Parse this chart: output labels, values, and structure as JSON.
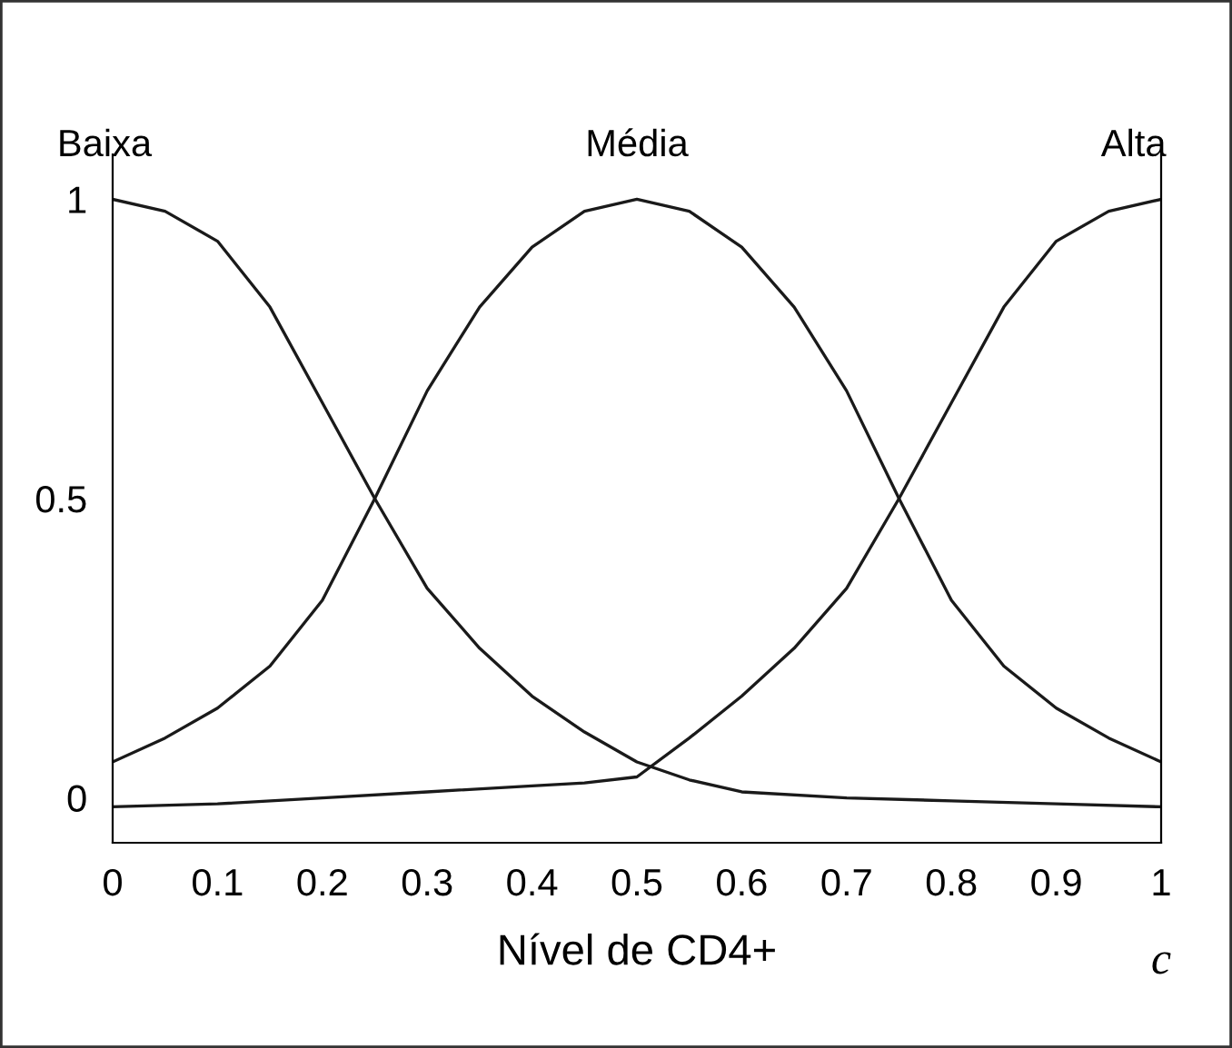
{
  "chart_data": {
    "type": "line",
    "xlabel": "Nível de CD4+",
    "series": [
      {
        "name": "Baixa",
        "color": "#1a1a1a",
        "x": [
          0,
          0.05,
          0.1,
          0.15,
          0.2,
          0.25,
          0.3,
          0.35,
          0.4,
          0.45,
          0.5,
          0.55,
          0.6,
          0.7,
          0.8,
          0.9,
          1.0
        ],
        "values": [
          1,
          0.98,
          0.93,
          0.82,
          0.66,
          0.5,
          0.35,
          0.25,
          0.17,
          0.11,
          0.06,
          0.03,
          0.01,
          0.0,
          -0.005,
          -0.01,
          -0.015
        ]
      },
      {
        "name": "Média",
        "color": "#1a1a1a",
        "x": [
          0,
          0.05,
          0.1,
          0.15,
          0.2,
          0.25,
          0.3,
          0.35,
          0.4,
          0.45,
          0.5,
          0.55,
          0.6,
          0.65,
          0.7,
          0.75,
          0.8,
          0.85,
          0.9,
          0.95,
          1.0
        ],
        "values": [
          0.06,
          0.1,
          0.15,
          0.22,
          0.33,
          0.5,
          0.68,
          0.82,
          0.92,
          0.98,
          1.0,
          0.98,
          0.92,
          0.82,
          0.68,
          0.5,
          0.33,
          0.22,
          0.15,
          0.1,
          0.06
        ]
      },
      {
        "name": "Alta",
        "color": "#1a1a1a",
        "x": [
          0,
          0.1,
          0.2,
          0.3,
          0.4,
          0.45,
          0.5,
          0.55,
          0.6,
          0.65,
          0.7,
          0.75,
          0.8,
          0.85,
          0.9,
          0.95,
          1.0
        ],
        "values": [
          -0.015,
          -0.01,
          0.0,
          0.01,
          0.02,
          0.025,
          0.035,
          0.1,
          0.17,
          0.25,
          0.35,
          0.5,
          0.66,
          0.82,
          0.93,
          0.98,
          1
        ]
      }
    ],
    "xlim": [
      0,
      1
    ],
    "ylim": [
      -0.075,
      1.075
    ],
    "xticks": [
      0,
      0.1,
      0.2,
      0.3,
      0.4,
      0.5,
      0.6,
      0.7,
      0.8,
      0.9,
      1
    ],
    "yticks": [
      0,
      0.5,
      1
    ],
    "annotations": [
      "c"
    ],
    "marker": "none",
    "line_style": "solid",
    "grid": false,
    "legend": false
  }
}
